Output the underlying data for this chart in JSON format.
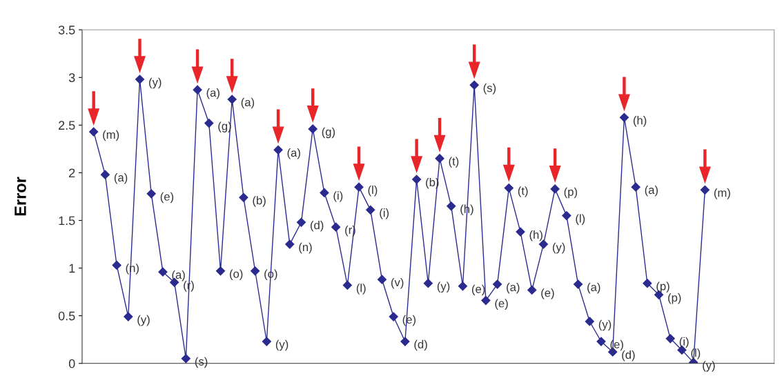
{
  "chart_data": {
    "type": "line",
    "ylabel": "Error",
    "categories": [
      null,
      null,
      null,
      null,
      null,
      null,
      null,
      null,
      null,
      null,
      null,
      null,
      null,
      null,
      null,
      null,
      null,
      null,
      null,
      null,
      null,
      null,
      null,
      null,
      null,
      null,
      null,
      null,
      null,
      null,
      null,
      null,
      null,
      null,
      null,
      null,
      null,
      null,
      null,
      null,
      null,
      null,
      null,
      null,
      null,
      null,
      null,
      null,
      null,
      null,
      null,
      null,
      null,
      null
    ],
    "series": [
      {
        "color": "#2b2b8f",
        "values": [
          2.43,
          1.98,
          1.03,
          0.49,
          2.98,
          1.78,
          0.96,
          0.85,
          0.05,
          2.87,
          2.52,
          0.97,
          2.77,
          1.74,
          0.97,
          0.23,
          2.24,
          1.25,
          1.48,
          2.46,
          1.79,
          1.43,
          0.82,
          1.85,
          1.61,
          0.88,
          0.49,
          0.23,
          1.93,
          0.84,
          2.15,
          1.65,
          0.81,
          2.92,
          0.66,
          0.83,
          1.84,
          1.38,
          0.77,
          1.25,
          1.83,
          1.55,
          0.83,
          0.44,
          0.23,
          0.12,
          2.58,
          1.85,
          0.84,
          0.72,
          0.26,
          0.14,
          0.01,
          1.82
        ],
        "value_labels": [
          "(m)",
          "(a)",
          "(n)",
          "(y)",
          "(y)",
          "(e)",
          "(a)",
          "(r)",
          "(s)",
          "(a)",
          "(g)",
          "(o)",
          "(a)",
          "(b)",
          "(o)",
          "(y)",
          "(a)",
          "(n)",
          "(d)",
          "(g)",
          "(i)",
          "(r)",
          "(l)",
          "(l)",
          "(i)",
          "(v)",
          "(e)",
          "(d)",
          "(b)",
          "(y)",
          "(t)",
          "(h)",
          "(e)",
          "(s)",
          "(e)",
          "(a)",
          "(t)",
          "(h)",
          "(e)",
          "(y)",
          "(p)",
          "(l)",
          "(a)",
          "(y)",
          "(e)",
          "(d)",
          "(h)",
          "(a)",
          "(p)",
          "(p)",
          "(i)",
          "(l)",
          "(y)",
          "(m)"
        ]
      }
    ],
    "ylim": [
      0,
      3.5
    ],
    "yticks": [
      0,
      0.5,
      1,
      1.5,
      2,
      2.5,
      3,
      3.5
    ],
    "marker": "diamond",
    "line_style": "solid",
    "grid": false,
    "legend": false,
    "tick_labels": "y"
  }
}
